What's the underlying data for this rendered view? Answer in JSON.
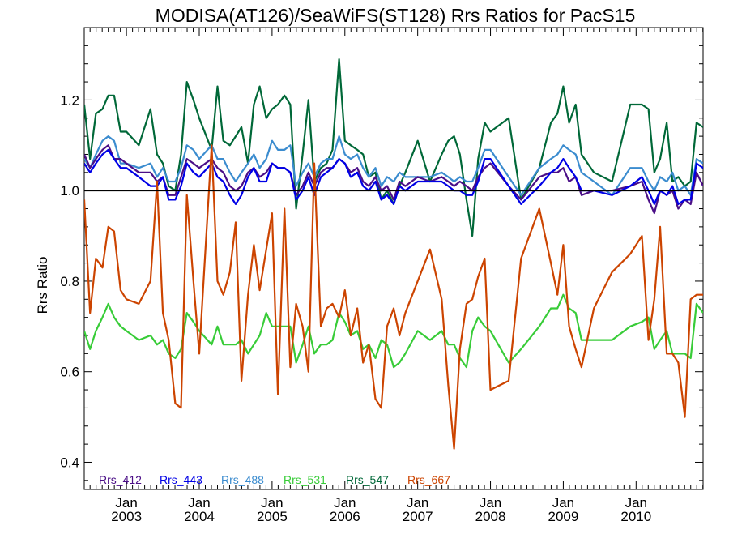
{
  "chart_data": {
    "type": "line",
    "title": "MODISA(AT126)/SeaWiFS(ST128)  Rrs Ratios for PacS15",
    "xlabel": "",
    "ylabel": "Rrs Ratio",
    "xlim": [
      2002.42,
      2010.92
    ],
    "ylim": [
      0.34,
      1.36
    ],
    "y_ticks": [
      {
        "value": 0.4,
        "label": "0.4"
      },
      {
        "value": 0.6,
        "label": "0.6"
      },
      {
        "value": 0.8,
        "label": "0.8"
      },
      {
        "value": 1.0,
        "label": "1.0"
      },
      {
        "value": 1.2,
        "label": "1.2"
      }
    ],
    "x_ticks": [
      {
        "value": 2003.0,
        "month": "Jan",
        "year": "2003"
      },
      {
        "value": 2004.0,
        "month": "Jan",
        "year": "2004"
      },
      {
        "value": 2005.0,
        "month": "Jan",
        "year": "2005"
      },
      {
        "value": 2006.0,
        "month": "Jan",
        "year": "2006"
      },
      {
        "value": 2007.0,
        "month": "Jan",
        "year": "2007"
      },
      {
        "value": 2008.0,
        "month": "Jan",
        "year": "2008"
      },
      {
        "value": 2009.0,
        "month": "Jan",
        "year": "2009"
      },
      {
        "value": 2010.0,
        "month": "Jan",
        "year": "2010"
      }
    ],
    "reference_line": {
      "y": 1.0,
      "color": "#000000"
    },
    "x": [
      2002.42,
      2002.5,
      2002.58,
      2002.67,
      2002.75,
      2002.83,
      2002.92,
      2003.0,
      2003.17,
      2003.33,
      2003.42,
      2003.5,
      2003.58,
      2003.67,
      2003.75,
      2003.83,
      2003.92,
      2004.0,
      2004.17,
      2004.25,
      2004.33,
      2004.42,
      2004.5,
      2004.58,
      2004.67,
      2004.75,
      2004.83,
      2004.92,
      2005.0,
      2005.08,
      2005.17,
      2005.25,
      2005.33,
      2005.42,
      2005.5,
      2005.58,
      2005.67,
      2005.75,
      2005.83,
      2005.92,
      2006.0,
      2006.08,
      2006.17,
      2006.25,
      2006.33,
      2006.42,
      2006.5,
      2006.58,
      2006.67,
      2006.75,
      2006.83,
      2007.0,
      2007.17,
      2007.33,
      2007.42,
      2007.5,
      2007.58,
      2007.67,
      2007.75,
      2007.83,
      2007.92,
      2008.0,
      2008.25,
      2008.42,
      2008.67,
      2008.83,
      2008.92,
      2009.0,
      2009.08,
      2009.17,
      2009.25,
      2009.42,
      2009.67,
      2009.92,
      2010.08,
      2010.17,
      2010.25,
      2010.33,
      2010.42,
      2010.5,
      2010.58,
      2010.67,
      2010.75,
      2010.83,
      2010.92
    ],
    "series": [
      {
        "name": "Rrs_412",
        "color": "#4b0f87",
        "values": [
          1.08,
          1.05,
          1.07,
          1.09,
          1.1,
          1.07,
          1.07,
          1.06,
          1.04,
          1.04,
          1.02,
          1.03,
          0.99,
          0.99,
          1.03,
          1.07,
          1.06,
          1.05,
          1.07,
          1.05,
          1.04,
          1.01,
          1.0,
          1.01,
          1.04,
          1.05,
          1.03,
          1.04,
          1.06,
          1.05,
          1.05,
          1.04,
          0.99,
          1.01,
          1.04,
          1.01,
          1.04,
          1.05,
          1.05,
          1.07,
          1.06,
          1.04,
          1.05,
          1.02,
          1.01,
          1.03,
          1.0,
          1.01,
          0.98,
          1.02,
          1.01,
          1.03,
          1.02,
          1.03,
          1.02,
          1.01,
          1.02,
          1.01,
          1.0,
          1.03,
          1.05,
          1.06,
          1.01,
          0.98,
          1.03,
          1.04,
          1.04,
          1.05,
          1.02,
          1.03,
          0.99,
          1.0,
          1.0,
          1.01,
          1.02,
          0.98,
          0.95,
          1.0,
          0.99,
          1.0,
          0.96,
          0.98,
          0.97,
          1.04,
          1.01
        ]
      },
      {
        "name": "Rrs_443",
        "color": "#0000e6",
        "values": [
          1.06,
          1.04,
          1.06,
          1.08,
          1.09,
          1.07,
          1.05,
          1.05,
          1.03,
          1.01,
          1.01,
          1.03,
          0.98,
          0.98,
          1.01,
          1.06,
          1.04,
          1.03,
          1.06,
          1.03,
          1.02,
          0.99,
          0.97,
          0.99,
          1.03,
          1.05,
          1.02,
          1.02,
          1.06,
          1.05,
          1.05,
          1.04,
          0.98,
          1.0,
          1.03,
          0.99,
          1.03,
          1.04,
          1.05,
          1.07,
          1.06,
          1.03,
          1.04,
          1.01,
          1.0,
          1.02,
          0.98,
          0.99,
          0.97,
          1.01,
          1.0,
          1.02,
          1.02,
          1.02,
          1.01,
          1.0,
          1.0,
          0.99,
          0.99,
          1.02,
          1.07,
          1.07,
          1.01,
          0.97,
          1.01,
          1.04,
          1.05,
          1.07,
          1.05,
          1.03,
          1.0,
          1.0,
          0.99,
          1.01,
          1.03,
          1.0,
          0.97,
          1.0,
          0.99,
          1.01,
          0.97,
          0.98,
          0.98,
          1.06,
          1.05
        ]
      },
      {
        "name": "Rrs_488",
        "color": "#3b8ccf",
        "values": [
          1.07,
          1.05,
          1.08,
          1.11,
          1.12,
          1.11,
          1.06,
          1.06,
          1.05,
          1.06,
          1.03,
          1.05,
          1.02,
          1.02,
          1.05,
          1.1,
          1.09,
          1.07,
          1.1,
          1.07,
          1.07,
          1.04,
          1.02,
          1.04,
          1.06,
          1.08,
          1.05,
          1.07,
          1.11,
          1.09,
          1.09,
          1.1,
          1.01,
          1.04,
          1.06,
          1.03,
          1.06,
          1.07,
          1.07,
          1.12,
          1.08,
          1.07,
          1.08,
          1.05,
          1.03,
          1.05,
          1.01,
          1.03,
          1.02,
          1.04,
          1.03,
          1.03,
          1.03,
          1.04,
          1.03,
          1.02,
          1.03,
          1.02,
          1.02,
          1.05,
          1.09,
          1.09,
          1.03,
          0.99,
          1.05,
          1.07,
          1.08,
          1.1,
          1.09,
          1.08,
          1.04,
          1.02,
          0.99,
          1.05,
          1.05,
          1.02,
          1.0,
          1.03,
          1.02,
          1.04,
          1.0,
          1.01,
          0.99,
          1.07,
          1.06
        ]
      },
      {
        "name": "Rrs_531",
        "color": "#38cc38",
        "values": [
          0.69,
          0.65,
          0.69,
          0.72,
          0.75,
          0.72,
          0.7,
          0.69,
          0.67,
          0.68,
          0.66,
          0.67,
          0.64,
          0.63,
          0.65,
          0.73,
          0.71,
          0.69,
          0.66,
          0.7,
          0.66,
          0.66,
          0.66,
          0.67,
          0.64,
          0.66,
          0.68,
          0.73,
          0.7,
          0.7,
          0.7,
          0.7,
          0.62,
          0.66,
          0.7,
          0.64,
          0.66,
          0.66,
          0.67,
          0.73,
          0.71,
          0.68,
          0.69,
          0.65,
          0.66,
          0.63,
          0.67,
          0.66,
          0.61,
          0.62,
          0.64,
          0.69,
          0.67,
          0.69,
          0.66,
          0.66,
          0.63,
          0.61,
          0.69,
          0.72,
          0.7,
          0.69,
          0.62,
          0.65,
          0.7,
          0.74,
          0.74,
          0.77,
          0.74,
          0.73,
          0.67,
          0.67,
          0.67,
          0.7,
          0.71,
          0.72,
          0.65,
          0.67,
          0.69,
          0.64,
          0.64,
          0.64,
          0.63,
          0.75,
          0.73
        ]
      },
      {
        "name": "Rrs_547",
        "color": "#006838",
        "values": [
          1.19,
          1.07,
          1.17,
          1.18,
          1.21,
          1.21,
          1.13,
          1.13,
          1.1,
          1.18,
          1.08,
          1.06,
          1.01,
          1.0,
          1.08,
          1.24,
          1.2,
          1.16,
          1.09,
          1.23,
          1.11,
          1.1,
          1.12,
          1.14,
          1.06,
          1.19,
          1.23,
          1.16,
          1.18,
          1.19,
          1.21,
          1.19,
          0.96,
          1.08,
          1.2,
          1.02,
          1.05,
          1.06,
          1.09,
          1.29,
          1.11,
          1.1,
          1.09,
          1.08,
          1.03,
          1.04,
          0.98,
          1.0,
          0.97,
          1.01,
          1.04,
          1.11,
          1.02,
          1.08,
          1.11,
          1.12,
          1.08,
          0.98,
          0.9,
          1.07,
          1.15,
          1.13,
          1.16,
          0.98,
          1.05,
          1.15,
          1.17,
          1.23,
          1.15,
          1.19,
          1.08,
          1.04,
          1.02,
          1.19,
          1.19,
          1.18,
          1.04,
          1.07,
          1.15,
          1.02,
          1.03,
          1.01,
          1.02,
          1.15,
          1.14
        ]
      },
      {
        "name": "Rrs_667",
        "color": "#cc4400",
        "values": [
          0.98,
          0.73,
          0.85,
          0.83,
          0.92,
          0.91,
          0.78,
          0.76,
          0.75,
          0.8,
          1.02,
          0.73,
          0.67,
          0.53,
          0.52,
          0.99,
          0.8,
          0.64,
          1.1,
          0.8,
          0.77,
          0.82,
          0.93,
          0.58,
          0.77,
          0.88,
          0.78,
          0.87,
          0.95,
          0.55,
          0.96,
          0.61,
          0.75,
          0.7,
          0.6,
          1.06,
          0.7,
          0.74,
          0.75,
          0.72,
          0.78,
          0.68,
          0.74,
          0.62,
          0.66,
          0.54,
          0.52,
          0.7,
          0.74,
          0.68,
          0.73,
          0.8,
          0.87,
          0.76,
          0.57,
          0.43,
          0.65,
          0.75,
          0.76,
          0.81,
          0.85,
          0.56,
          0.58,
          0.85,
          0.96,
          0.84,
          0.77,
          0.88,
          0.7,
          0.65,
          0.61,
          0.74,
          0.82,
          0.86,
          0.9,
          0.67,
          0.76,
          0.92,
          0.64,
          0.64,
          0.62,
          0.5,
          0.76,
          0.77,
          0.77
        ]
      }
    ],
    "legend": {
      "placement": "bottom-left",
      "orientation": "horizontal"
    }
  }
}
